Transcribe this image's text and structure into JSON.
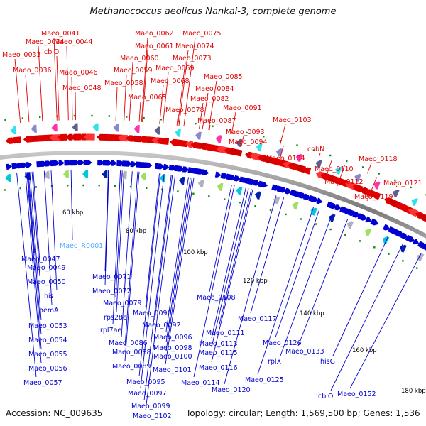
{
  "title": "Methanococcus aeolicus Nankai-3, complete genome",
  "accession": "Accession: NC_009635",
  "summary": "Topology: circular; Length: 1,569,500 bp; Genes: 1,536",
  "ticks": [
    "60 kbp",
    "80 kbp",
    "100 kbp",
    "120 kbp",
    "140 kbp",
    "160 kbp",
    "180 kbp"
  ],
  "upper_labels": [
    "Maeo_0041",
    "Maeo_0034",
    "cbiD",
    "Maeo_0044",
    "Maeo_0033",
    "Maeo_0036",
    "Maeo_0046",
    "Maeo_0048",
    "Maeo_0062",
    "Maeo_0075",
    "Maeo_0061",
    "Maeo_0074",
    "Maeo_0060",
    "Maeo_0073",
    "Maeo_0059",
    "Maeo_0069",
    "Maeo_0058",
    "Maeo_0068",
    "Maeo_0085",
    "Maeo_0084",
    "Maeo_0065",
    "Maeo_0082",
    "Maeo_0078",
    "Maeo_0091",
    "Maeo_0087",
    "Maeo_0103",
    "Maeo_0093",
    "Maeo_0094",
    "cobN",
    "Maeo_0104",
    "Maeo_0118",
    "Maeo_0110",
    "Maeo_0112",
    "Maeo_0121",
    "Maeo_0119"
  ],
  "lower_labels": [
    "Maeo_0047",
    "Maeo_0049",
    "Maeo_0050",
    "his",
    "hemA",
    "Maeo_0053",
    "Maeo_0054",
    "Maeo_0055",
    "Maeo_0056",
    "Maeo_0057",
    "Maeo_0071",
    "Maeo_0072",
    "Maeo_0079",
    "rps28e",
    "rpl7ae",
    "Maeo_0090",
    "Maeo_0092",
    "Maeo_0086",
    "Maeo_0088",
    "Maeo_0096",
    "Maeo_0098",
    "Maeo_0100",
    "Maeo_0089",
    "Maeo_0101",
    "Maeo_0095",
    "Maeo_0097",
    "Maeo_0099",
    "Maeo_0102",
    "Maeo_0108",
    "Maeo_0111",
    "Maeo_0113",
    "Maeo_0115",
    "Maeo_0116",
    "Maeo_0114",
    "Maeo_0117",
    "Maeo_0120",
    "Maeo_0125",
    "rplX",
    "Maeo_0126",
    "Maeo_0133",
    "hisG",
    "cbiO",
    "Maeo_0152"
  ],
  "rna_labels": [
    "Maeo_R0001"
  ],
  "colors": {
    "forward": "#e00000",
    "reverse": "#0000d0",
    "rna": "#55aaff",
    "backbone": "#808080"
  }
}
